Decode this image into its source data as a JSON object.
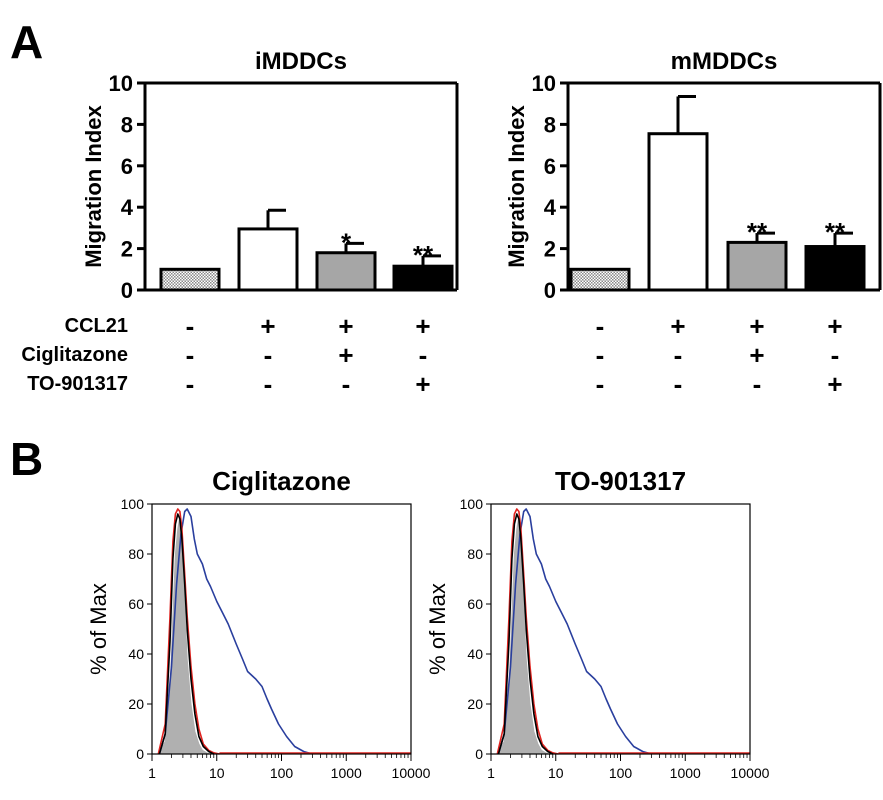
{
  "panels": {
    "a_label": "A",
    "b_label": "B"
  },
  "condition_rows": [
    {
      "label": "CCL21",
      "signs": [
        "-",
        "+",
        "+",
        "+"
      ]
    },
    {
      "label": "Ciglitazone",
      "signs": [
        "-",
        "-",
        "+",
        "-"
      ]
    },
    {
      "label": "TO-901317",
      "signs": [
        "-",
        "-",
        "-",
        "+"
      ]
    }
  ],
  "colors": {
    "bar_control": "#d8d8d8",
    "bar_ccl21": "#ffffff",
    "bar_ciglitazone": "#a6a6a6",
    "bar_to901317": "#000000",
    "hist_filled": "#b0b0b0",
    "hist_blue": "#2a3f9e",
    "hist_red": "#e0231f",
    "hist_black": "#000000"
  },
  "chart_data": [
    {
      "type": "bar",
      "title": "iMDDCs",
      "ylabel": "Migration Index",
      "xlabel": "",
      "ylim": [
        0,
        10
      ],
      "yticks": [
        "0",
        "2",
        "4",
        "6",
        "8",
        "10"
      ],
      "values": [
        1.0,
        2.95,
        1.8,
        1.15
      ],
      "errors": [
        0,
        0.9,
        0.45,
        0.5
      ],
      "annotations": [
        "",
        "",
        "*",
        "**"
      ]
    },
    {
      "type": "bar",
      "title": "mMDDCs",
      "ylabel": "Migration Index",
      "xlabel": "",
      "ylim": [
        0,
        10
      ],
      "yticks": [
        "0",
        "2",
        "4",
        "6",
        "8",
        "10"
      ],
      "values": [
        1.0,
        7.55,
        2.3,
        2.1
      ],
      "errors": [
        0,
        1.8,
        0.45,
        0.65
      ],
      "annotations": [
        "",
        "",
        "**",
        "**"
      ]
    },
    {
      "type": "area",
      "title": "Ciglitazone",
      "ylabel": "% of Max",
      "xlabel": "",
      "xscale": "log",
      "xlim": [
        1,
        10000
      ],
      "ylim": [
        0,
        100
      ],
      "xticks": [
        "1",
        "10",
        "100",
        "1000",
        "10000"
      ],
      "yticks": [
        "0",
        "20",
        "40",
        "60",
        "80",
        "100"
      ],
      "series": [
        {
          "style": "filled",
          "color": "#b0b0b0",
          "x": [
            1.25,
            1.6,
            1.9,
            2.1,
            2.3,
            2.5,
            2.7,
            2.9,
            3.2,
            3.5,
            4.0,
            4.6,
            5.3,
            6.0,
            7.0,
            8.0
          ],
          "y": [
            0,
            5,
            25,
            55,
            80,
            90,
            95,
            85,
            60,
            38,
            20,
            9,
            4,
            1.5,
            0.5,
            0
          ]
        },
        {
          "style": "line",
          "color": "#2a3f9e",
          "x": [
            1.3,
            1.6,
            2.0,
            2.4,
            2.8,
            3.2,
            3.5,
            4.0,
            4.5,
            5.0,
            6.0,
            7.0,
            8.0,
            10,
            12,
            15,
            20,
            25,
            30,
            40,
            50,
            60,
            70,
            90,
            120,
            160,
            220,
            300
          ],
          "y": [
            0,
            8,
            35,
            68,
            88,
            97,
            98,
            95,
            86,
            80,
            76,
            70,
            67,
            61,
            57,
            52,
            44,
            38,
            33,
            30,
            27,
            22,
            18,
            12,
            7,
            3,
            1,
            0
          ]
        },
        {
          "style": "line",
          "color": "#e0231f",
          "x": [
            1.25,
            1.6,
            1.9,
            2.1,
            2.3,
            2.5,
            2.7,
            2.9,
            3.2,
            3.5,
            4.0,
            4.6,
            5.3,
            6.2,
            7.5,
            9.0,
            11
          ],
          "y": [
            0,
            12,
            55,
            85,
            96,
            98,
            97,
            90,
            72,
            55,
            35,
            20,
            10,
            4,
            1.5,
            0.5,
            0
          ]
        },
        {
          "style": "line",
          "color": "#000000",
          "x": [
            1.3,
            1.6,
            1.9,
            2.1,
            2.3,
            2.5,
            2.7,
            2.9,
            3.2,
            3.5,
            4.0,
            4.6,
            5.3,
            6.2,
            7.5,
            9.0
          ],
          "y": [
            0,
            8,
            45,
            78,
            92,
            96,
            94,
            86,
            68,
            50,
            30,
            16,
            7,
            3,
            1,
            0
          ]
        }
      ]
    },
    {
      "type": "area",
      "title": "TO-901317",
      "ylabel": "% of Max",
      "xlabel": "",
      "xscale": "log",
      "xlim": [
        1,
        10000
      ],
      "ylim": [
        0,
        100
      ],
      "xticks": [
        "1",
        "10",
        "100",
        "1000",
        "10000"
      ],
      "yticks": [
        "0",
        "20",
        "40",
        "60",
        "80",
        "100"
      ],
      "series": [
        {
          "style": "filled",
          "color": "#b0b0b0",
          "x": [
            1.25,
            1.6,
            1.9,
            2.1,
            2.3,
            2.5,
            2.7,
            2.9,
            3.2,
            3.5,
            4.0,
            4.6,
            5.3,
            6.0,
            7.0,
            8.0
          ],
          "y": [
            0,
            5,
            25,
            55,
            80,
            90,
            95,
            85,
            60,
            38,
            20,
            9,
            4,
            1.5,
            0.5,
            0
          ]
        },
        {
          "style": "line",
          "color": "#2a3f9e",
          "x": [
            1.3,
            1.6,
            2.0,
            2.4,
            2.8,
            3.2,
            3.5,
            4.0,
            4.5,
            5.0,
            6.0,
            7.0,
            8.0,
            10,
            12,
            15,
            20,
            25,
            30,
            40,
            50,
            60,
            70,
            90,
            120,
            160,
            220,
            300
          ],
          "y": [
            0,
            8,
            35,
            68,
            88,
            97,
            98,
            95,
            86,
            80,
            76,
            70,
            67,
            61,
            57,
            52,
            44,
            38,
            33,
            30,
            27,
            22,
            18,
            12,
            7,
            3,
            1,
            0
          ]
        },
        {
          "style": "line",
          "color": "#e0231f",
          "x": [
            1.25,
            1.6,
            1.9,
            2.1,
            2.3,
            2.5,
            2.7,
            2.9,
            3.2,
            3.5,
            4.0,
            4.6,
            5.3,
            6.2,
            7.5,
            9.0,
            11
          ],
          "y": [
            0,
            12,
            55,
            85,
            96,
            98,
            97,
            90,
            72,
            55,
            35,
            20,
            10,
            4,
            1.5,
            0.5,
            0
          ]
        },
        {
          "style": "line",
          "color": "#000000",
          "x": [
            1.3,
            1.6,
            1.9,
            2.1,
            2.3,
            2.5,
            2.7,
            2.9,
            3.2,
            3.5,
            4.0,
            4.6,
            5.3,
            6.2,
            7.5,
            9.0
          ],
          "y": [
            0,
            8,
            45,
            78,
            92,
            96,
            94,
            86,
            68,
            50,
            30,
            16,
            7,
            3,
            1,
            0
          ]
        }
      ]
    }
  ]
}
